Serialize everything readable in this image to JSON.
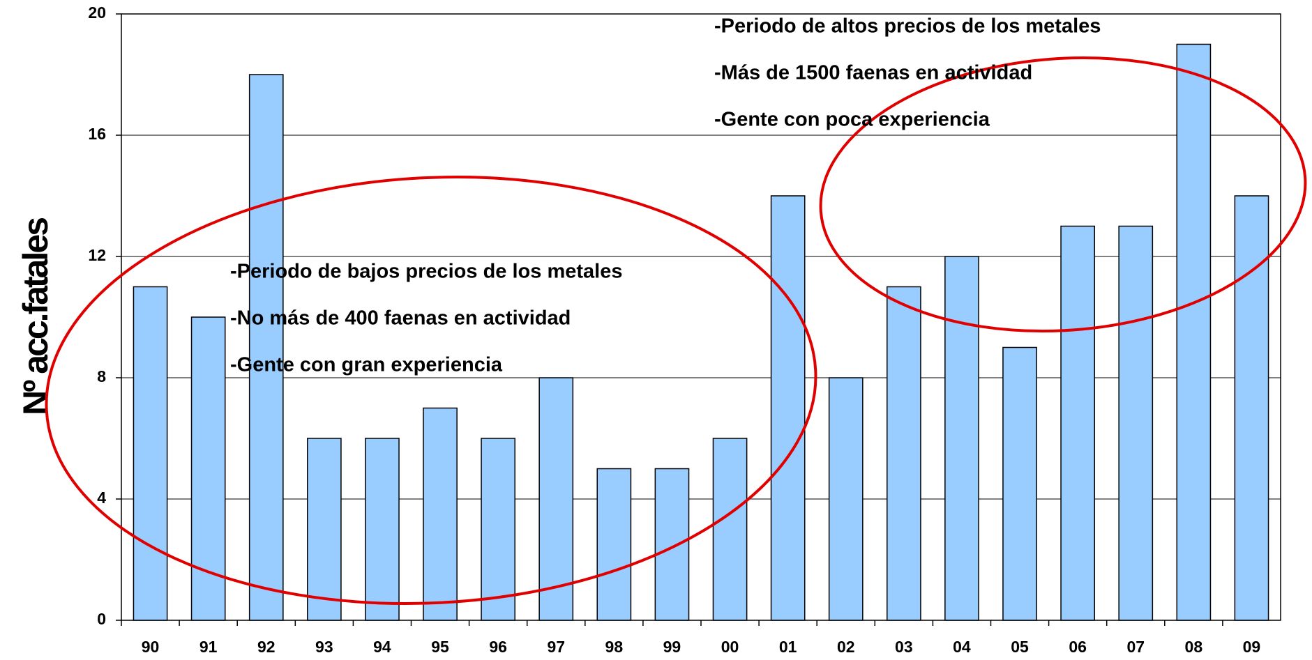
{
  "chart_data": {
    "type": "bar",
    "y_label": "Nº acc.fatales",
    "categories": [
      "90",
      "91",
      "92",
      "93",
      "94",
      "95",
      "96",
      "97",
      "98",
      "99",
      "00",
      "01",
      "02",
      "03",
      "04",
      "05",
      "06",
      "07",
      "08",
      "09"
    ],
    "values": [
      11,
      10,
      18,
      6,
      6,
      7,
      6,
      8,
      5,
      5,
      6,
      14,
      8,
      11,
      12,
      9,
      13,
      13,
      19,
      14
    ],
    "color": "#99ccff",
    "ylim": [
      0,
      20
    ],
    "yticks": [
      0,
      4,
      8,
      12,
      16,
      20
    ],
    "grid": true,
    "annotations": [
      {
        "lines": [
          "-Periodo de altos  precios de los metales",
          "-Más de 1500 faenas en actividad",
          "-Gente con poca experiencia"
        ]
      },
      {
        "lines": [
          "-Periodo de bajos precios de los metales",
          "-No más de 400 faenas en actividad",
          "-Gente con gran experiencia"
        ]
      }
    ]
  }
}
